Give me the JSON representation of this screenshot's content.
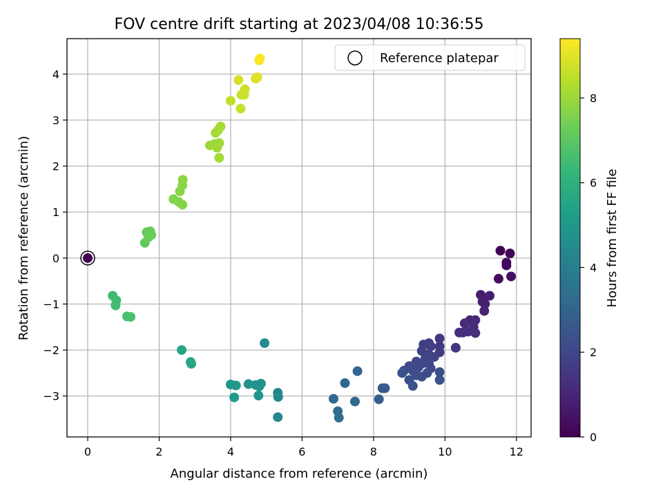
{
  "chart_data": {
    "type": "scatter",
    "title": "FOV centre drift starting at 2023/04/08 10:36:55",
    "xlabel": "Angular distance from reference (arcmin)",
    "ylabel": "Rotation from reference (arcmin)",
    "xlim": [
      -0.58,
      12.41
    ],
    "ylim": [
      -3.89,
      4.77
    ],
    "xticks": [
      0,
      2,
      4,
      6,
      8,
      10,
      12
    ],
    "yticks": [
      -3,
      -2,
      -1,
      0,
      1,
      2,
      3,
      4
    ],
    "grid": true,
    "legend": {
      "placement": "top-right",
      "entries": [
        "Reference platepar"
      ]
    },
    "reference_point": {
      "x": 0,
      "y": 0
    },
    "colorbar": {
      "label": "Hours from first FF file",
      "colormap": "viridis",
      "range": [
        0,
        9.4
      ],
      "ticks": [
        0,
        2,
        4,
        6,
        8
      ]
    },
    "points": [
      {
        "x": 11.55,
        "y": 0.16,
        "h": 0.0
      },
      {
        "x": 11.82,
        "y": 0.1,
        "h": 0.1
      },
      {
        "x": 11.72,
        "y": -0.1,
        "h": 0.2
      },
      {
        "x": 11.72,
        "y": -0.16,
        "h": 0.25
      },
      {
        "x": 11.5,
        "y": -0.45,
        "h": 0.3
      },
      {
        "x": 11.85,
        "y": -0.4,
        "h": 0.35
      },
      {
        "x": 11.0,
        "y": -0.8,
        "h": 0.7
      },
      {
        "x": 11.25,
        "y": -0.82,
        "h": 0.75
      },
      {
        "x": 11.05,
        "y": -0.95,
        "h": 0.8
      },
      {
        "x": 11.12,
        "y": -1.0,
        "h": 0.85
      },
      {
        "x": 11.1,
        "y": -1.15,
        "h": 0.9
      },
      {
        "x": 10.7,
        "y": -1.35,
        "h": 1.0
      },
      {
        "x": 10.85,
        "y": -1.35,
        "h": 1.05
      },
      {
        "x": 10.55,
        "y": -1.42,
        "h": 1.1
      },
      {
        "x": 10.8,
        "y": -1.5,
        "h": 1.15
      },
      {
        "x": 10.4,
        "y": -1.62,
        "h": 1.2
      },
      {
        "x": 10.5,
        "y": -1.62,
        "h": 1.25
      },
      {
        "x": 10.65,
        "y": -1.6,
        "h": 1.3
      },
      {
        "x": 10.85,
        "y": -1.63,
        "h": 1.35
      },
      {
        "x": 10.3,
        "y": -1.95,
        "h": 1.45
      },
      {
        "x": 9.85,
        "y": -1.75,
        "h": 1.55
      },
      {
        "x": 9.85,
        "y": -1.92,
        "h": 1.6
      },
      {
        "x": 9.85,
        "y": -2.05,
        "h": 1.65
      },
      {
        "x": 9.55,
        "y": -1.85,
        "h": 1.7
      },
      {
        "x": 9.4,
        "y": -1.88,
        "h": 1.75
      },
      {
        "x": 9.6,
        "y": -1.92,
        "h": 1.78
      },
      {
        "x": 9.35,
        "y": -2.02,
        "h": 1.8
      },
      {
        "x": 9.55,
        "y": -2.1,
        "h": 1.85
      },
      {
        "x": 9.7,
        "y": -2.15,
        "h": 1.88
      },
      {
        "x": 9.45,
        "y": -2.18,
        "h": 1.9
      },
      {
        "x": 9.2,
        "y": -2.25,
        "h": 1.95
      },
      {
        "x": 9.35,
        "y": -2.3,
        "h": 2.0
      },
      {
        "x": 9.55,
        "y": -2.3,
        "h": 2.02
      },
      {
        "x": 9.0,
        "y": -2.35,
        "h": 2.05
      },
      {
        "x": 9.25,
        "y": -2.38,
        "h": 2.08
      },
      {
        "x": 9.6,
        "y": -2.4,
        "h": 2.1
      },
      {
        "x": 8.85,
        "y": -2.45,
        "h": 2.15
      },
      {
        "x": 9.1,
        "y": -2.45,
        "h": 2.18
      },
      {
        "x": 9.5,
        "y": -2.5,
        "h": 2.2
      },
      {
        "x": 9.85,
        "y": -2.48,
        "h": 2.22
      },
      {
        "x": 9.2,
        "y": -2.55,
        "h": 2.25
      },
      {
        "x": 9.35,
        "y": -2.58,
        "h": 2.28
      },
      {
        "x": 9.0,
        "y": -2.65,
        "h": 2.3
      },
      {
        "x": 9.85,
        "y": -2.65,
        "h": 2.32
      },
      {
        "x": 9.1,
        "y": -2.78,
        "h": 2.35
      },
      {
        "x": 8.8,
        "y": -2.5,
        "h": 2.38
      },
      {
        "x": 8.25,
        "y": -2.83,
        "h": 2.6
      },
      {
        "x": 8.32,
        "y": -2.83,
        "h": 2.65
      },
      {
        "x": 8.15,
        "y": -3.07,
        "h": 2.8
      },
      {
        "x": 7.55,
        "y": -2.46,
        "h": 3.0
      },
      {
        "x": 7.2,
        "y": -2.72,
        "h": 3.1
      },
      {
        "x": 7.48,
        "y": -3.12,
        "h": 3.2
      },
      {
        "x": 6.88,
        "y": -3.06,
        "h": 3.3
      },
      {
        "x": 7.0,
        "y": -3.33,
        "h": 3.4
      },
      {
        "x": 7.03,
        "y": -3.47,
        "h": 3.45
      },
      {
        "x": 5.32,
        "y": -2.93,
        "h": 4.3
      },
      {
        "x": 5.33,
        "y": -3.02,
        "h": 4.35
      },
      {
        "x": 5.32,
        "y": -3.46,
        "h": 4.4
      },
      {
        "x": 4.95,
        "y": -1.85,
        "h": 4.6
      },
      {
        "x": 4.85,
        "y": -2.73,
        "h": 4.7
      },
      {
        "x": 4.7,
        "y": -2.76,
        "h": 4.75
      },
      {
        "x": 4.8,
        "y": -2.79,
        "h": 4.78
      },
      {
        "x": 4.5,
        "y": -2.74,
        "h": 4.8
      },
      {
        "x": 4.78,
        "y": -2.99,
        "h": 4.85
      },
      {
        "x": 4.0,
        "y": -2.75,
        "h": 5.0
      },
      {
        "x": 4.15,
        "y": -2.77,
        "h": 5.05
      },
      {
        "x": 4.1,
        "y": -3.03,
        "h": 5.1
      },
      {
        "x": 2.63,
        "y": -2.0,
        "h": 5.5
      },
      {
        "x": 2.88,
        "y": -2.26,
        "h": 5.55
      },
      {
        "x": 2.9,
        "y": -2.3,
        "h": 5.6
      },
      {
        "x": 0.7,
        "y": -0.82,
        "h": 6.4
      },
      {
        "x": 0.8,
        "y": -0.92,
        "h": 6.45
      },
      {
        "x": 0.78,
        "y": -1.03,
        "h": 6.5
      },
      {
        "x": 1.1,
        "y": -1.27,
        "h": 6.6
      },
      {
        "x": 1.2,
        "y": -1.28,
        "h": 6.65
      },
      {
        "x": 1.6,
        "y": 0.33,
        "h": 7.1
      },
      {
        "x": 1.65,
        "y": 0.56,
        "h": 7.15
      },
      {
        "x": 1.75,
        "y": 0.58,
        "h": 7.2
      },
      {
        "x": 1.78,
        "y": 0.5,
        "h": 7.25
      },
      {
        "x": 1.7,
        "y": 0.45,
        "h": 7.28
      },
      {
        "x": 2.4,
        "y": 1.28,
        "h": 7.6
      },
      {
        "x": 2.55,
        "y": 1.22,
        "h": 7.65
      },
      {
        "x": 2.65,
        "y": 1.16,
        "h": 7.7
      },
      {
        "x": 2.58,
        "y": 1.45,
        "h": 7.72
      },
      {
        "x": 2.65,
        "y": 1.58,
        "h": 7.75
      },
      {
        "x": 2.66,
        "y": 1.7,
        "h": 7.78
      },
      {
        "x": 3.42,
        "y": 2.45,
        "h": 8.0
      },
      {
        "x": 3.55,
        "y": 2.48,
        "h": 8.02
      },
      {
        "x": 3.68,
        "y": 2.5,
        "h": 8.05
      },
      {
        "x": 3.62,
        "y": 2.4,
        "h": 8.07
      },
      {
        "x": 3.68,
        "y": 2.18,
        "h": 8.1
      },
      {
        "x": 3.58,
        "y": 2.72,
        "h": 8.12
      },
      {
        "x": 3.65,
        "y": 2.78,
        "h": 8.15
      },
      {
        "x": 3.72,
        "y": 2.86,
        "h": 8.18
      },
      {
        "x": 4.0,
        "y": 3.42,
        "h": 8.5
      },
      {
        "x": 4.28,
        "y": 3.25,
        "h": 8.6
      },
      {
        "x": 4.3,
        "y": 3.55,
        "h": 8.65
      },
      {
        "x": 4.38,
        "y": 3.55,
        "h": 8.68
      },
      {
        "x": 4.4,
        "y": 3.67,
        "h": 8.7
      },
      {
        "x": 4.22,
        "y": 3.87,
        "h": 8.8
      },
      {
        "x": 4.7,
        "y": 3.9,
        "h": 8.9
      },
      {
        "x": 4.75,
        "y": 3.93,
        "h": 8.95
      },
      {
        "x": 4.8,
        "y": 4.3,
        "h": 9.3
      },
      {
        "x": 4.82,
        "y": 4.34,
        "h": 9.35
      },
      {
        "x": 0.0,
        "y": 0.0,
        "h": 0.0
      }
    ]
  }
}
